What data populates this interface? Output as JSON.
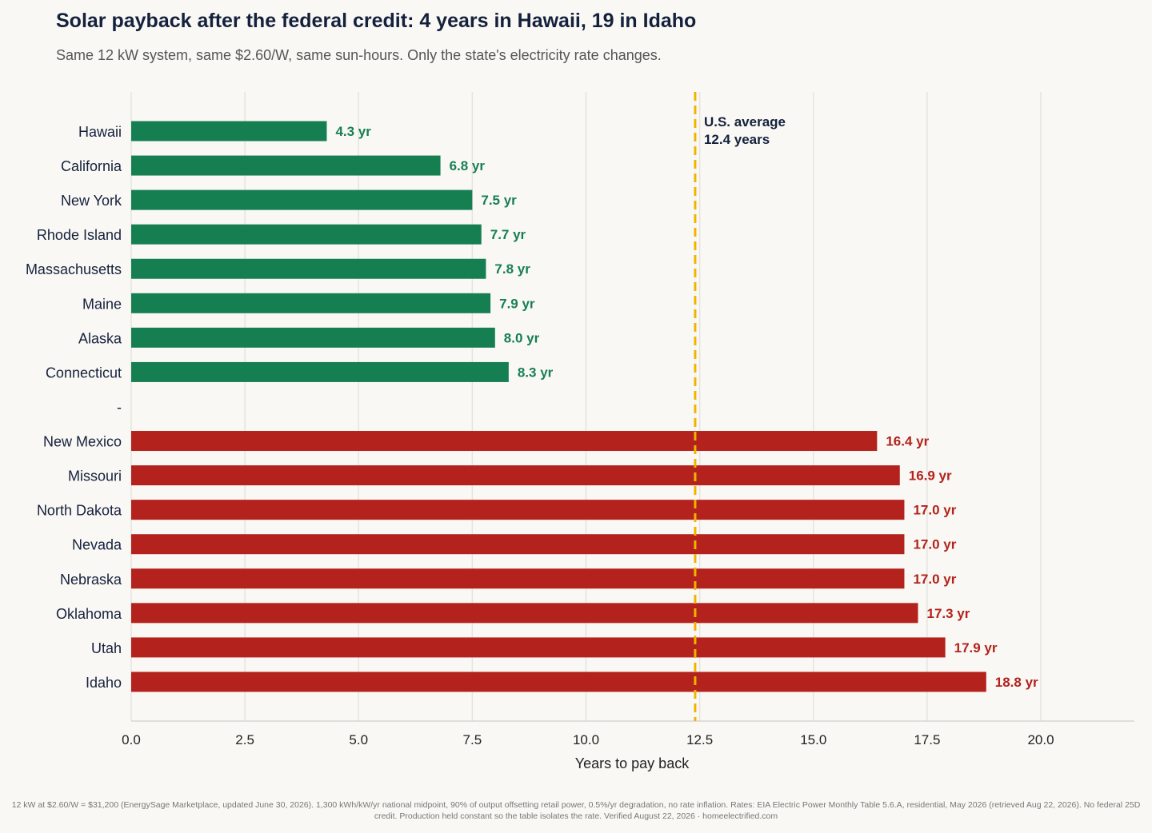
{
  "title": "Solar payback after the federal credit: 4 years in Hawaii, 19 in Idaho",
  "subtitle": "Same 12 kW system, same $2.60/W, same sun-hours. Only the state's electricity rate changes.",
  "footnote": "12 kW at $2.60/W = $31,200 (EnergySage Marketplace, updated June 30, 2026). 1,300 kWh/kW/yr national midpoint, 90% of output offsetting retail power, 0.5%/yr degradation, no rate inflation. Rates: EIA Electric Power Monthly Table 5.6.A, residential, May 2026 (retrieved Aug 22, 2026). No federal 25D credit. Production held constant so the table isolates the rate. Verified August 22, 2026 · homeelectrified.com",
  "chart_data": {
    "type": "bar",
    "orientation": "horizontal",
    "xlabel": "Years to pay back",
    "xlim": [
      0,
      22
    ],
    "xticks": [
      "0.0",
      "2.5",
      "5.0",
      "7.5",
      "10.0",
      "12.5",
      "15.0",
      "17.5",
      "20.0"
    ],
    "grid": "vertical",
    "categories": [
      "Hawaii",
      "California",
      "New York",
      "Rhode Island",
      "Massachusetts",
      "Maine",
      "Alaska",
      "Connecticut",
      "-",
      "New Mexico",
      "Missouri",
      "North Dakota",
      "Nevada",
      "Nebraska",
      "Oklahoma",
      "Utah",
      "Idaho"
    ],
    "values": [
      4.3,
      6.8,
      7.5,
      7.7,
      7.8,
      7.9,
      8.0,
      8.3,
      null,
      16.4,
      16.9,
      17.0,
      17.0,
      17.0,
      17.3,
      17.9,
      18.8
    ],
    "value_labels": [
      "4.3 yr",
      "6.8 yr",
      "7.5 yr",
      "7.7 yr",
      "7.8 yr",
      "7.9 yr",
      "8.0 yr",
      "8.3 yr",
      "",
      "16.4 yr",
      "16.9 yr",
      "17.0 yr",
      "17.0 yr",
      "17.0 yr",
      "17.3 yr",
      "17.9 yr",
      "18.8 yr"
    ],
    "bar_colors": [
      "#167f52",
      "#167f52",
      "#167f52",
      "#167f52",
      "#167f52",
      "#167f52",
      "#167f52",
      "#167f52",
      null,
      "#b3221c",
      "#b3221c",
      "#b3221c",
      "#b3221c",
      "#b3221c",
      "#b3221c",
      "#b3221c",
      "#b3221c"
    ],
    "reference_line": {
      "value": 12.4,
      "label_line1": "U.S. average",
      "label_line2": "12.4 years",
      "color": "#f0b400",
      "style": "dashed"
    }
  }
}
